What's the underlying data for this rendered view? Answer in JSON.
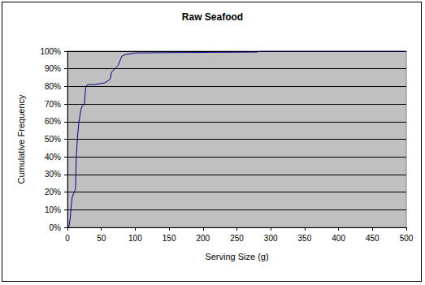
{
  "chart_data": {
    "type": "line",
    "title": "Raw Seafood",
    "x_label": "Serving Size (g)",
    "y_label": "Cumulative Frequency",
    "x": [
      2,
      4,
      5,
      7,
      10,
      12,
      13,
      15,
      17,
      20,
      22,
      25,
      27,
      30,
      40,
      55,
      63,
      65,
      70,
      75,
      80,
      85,
      100,
      150,
      280,
      285,
      500
    ],
    "values": [
      0,
      5,
      10,
      17,
      20,
      22,
      40,
      52,
      60,
      67,
      69,
      70,
      80,
      81,
      81,
      82,
      84,
      88,
      90,
      92,
      97,
      98,
      99,
      99.2,
      99.5,
      100,
      100
    ],
    "color": "#000080",
    "marker": "none",
    "line_style": "solid",
    "xlim": [
      0,
      500
    ],
    "xticks": [
      0,
      50,
      100,
      150,
      200,
      250,
      300,
      350,
      400,
      450,
      500
    ],
    "ylim": [
      0,
      100
    ],
    "yticks": [
      {
        "value": 0,
        "label": "0%"
      },
      {
        "value": 10,
        "label": "10%"
      },
      {
        "value": 20,
        "label": "20%"
      },
      {
        "value": 30,
        "label": "30%"
      },
      {
        "value": 40,
        "label": "40%"
      },
      {
        "value": 50,
        "label": "50%"
      },
      {
        "value": 60,
        "label": "60%"
      },
      {
        "value": 70,
        "label": "70%"
      },
      {
        "value": 80,
        "label": "80%"
      },
      {
        "value": 90,
        "label": "90%"
      },
      {
        "value": 100,
        "label": "100%"
      }
    ],
    "grid": true
  }
}
